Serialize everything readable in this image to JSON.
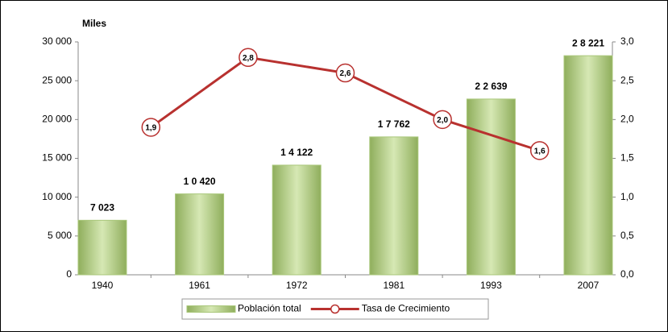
{
  "chart_data": {
    "type": "bar",
    "y_label": "Miles",
    "categories": [
      "1940",
      "1961",
      "1972",
      "1981",
      "1993",
      "2007"
    ],
    "series": [
      {
        "name": "Población total",
        "type": "bar",
        "color": "#a9c77a",
        "values": [
          7023,
          10420,
          14122,
          17762,
          22639,
          28221
        ],
        "value_labels": [
          "7 023",
          "1 0 420",
          "1 4 122",
          "1 7 762",
          "2 2 639",
          "2 8 221"
        ]
      },
      {
        "name": "Tasa de Crecimiento",
        "type": "line",
        "axis": "y2",
        "color": "#b8312f",
        "values": [
          null,
          1.9,
          2.8,
          2.6,
          2.0,
          1.6
        ],
        "value_labels": [
          null,
          "1,9",
          "2,8",
          "2,6",
          "2,0",
          "1,6"
        ]
      }
    ],
    "ylim": [
      0,
      30000
    ],
    "yticks": [
      0,
      {
        "value": 5000,
        "label": "5 000"
      },
      {
        "value": 10000,
        "label": "10 000"
      },
      {
        "value": 15000,
        "label": "15 000"
      },
      {
        "value": 20000,
        "label": "20 000"
      },
      {
        "value": 25000,
        "label": "25 000"
      },
      {
        "value": 30000,
        "label": "30 000"
      }
    ],
    "y2lim": [
      0,
      3
    ],
    "y2ticks": [
      {
        "value": 0,
        "label": "0,0"
      },
      {
        "value": 0.5,
        "label": "0,5"
      },
      {
        "value": 1,
        "label": "1,0"
      },
      {
        "value": 1.5,
        "label": "1,5"
      },
      {
        "value": 2,
        "label": "2,0"
      },
      {
        "value": 2.5,
        "label": "2,5"
      },
      {
        "value": 3,
        "label": "3,0"
      }
    ],
    "legend": "bottom"
  }
}
